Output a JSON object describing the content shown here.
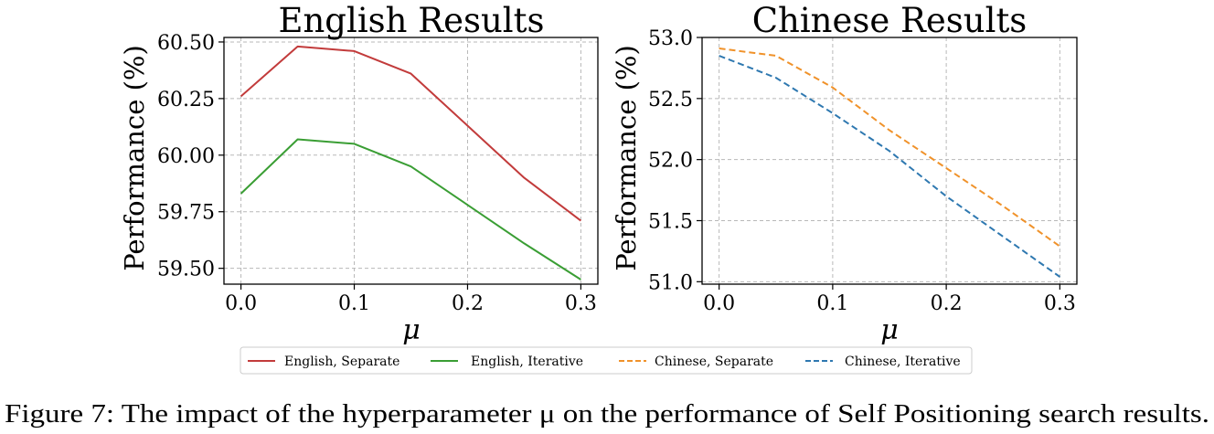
{
  "chart_data": [
    {
      "type": "line",
      "title": "English Results",
      "xlabel": "μ",
      "ylabel": "Performance (%)",
      "xlim": [
        -0.015,
        0.315
      ],
      "ylim": [
        59.43,
        60.52
      ],
      "xticks": [
        "0.0",
        "0.1",
        "0.2",
        "0.3"
      ],
      "xtick_values": [
        0.0,
        0.1,
        0.2,
        0.3
      ],
      "yticks": [
        "59.50",
        "59.75",
        "60.00",
        "60.25",
        "60.50"
      ],
      "ytick_values": [
        59.5,
        59.75,
        60.0,
        60.25,
        60.5
      ],
      "grid": true,
      "x": [
        0.0,
        0.05,
        0.1,
        0.15,
        0.2,
        0.25,
        0.3
      ],
      "series": [
        {
          "name": "English, Separate",
          "color": "#c23b3b",
          "dash": "solid",
          "values": [
            60.26,
            60.48,
            60.46,
            60.36,
            60.13,
            59.9,
            59.71
          ]
        },
        {
          "name": "English, Iterative",
          "color": "#3a9e34",
          "dash": "solid",
          "values": [
            59.83,
            60.07,
            60.05,
            59.95,
            59.78,
            59.61,
            59.45
          ]
        }
      ]
    },
    {
      "type": "line",
      "title": "Chinese Results",
      "xlabel": "μ",
      "ylabel": "Performance (%)",
      "xlim": [
        -0.015,
        0.315
      ],
      "ylim": [
        50.98,
        53.0
      ],
      "xticks": [
        "0.0",
        "0.1",
        "0.2",
        "0.3"
      ],
      "xtick_values": [
        0.0,
        0.1,
        0.2,
        0.3
      ],
      "yticks": [
        "51.0",
        "51.5",
        "52.0",
        "52.5",
        "53.0"
      ],
      "ytick_values": [
        51.0,
        51.5,
        52.0,
        52.5,
        53.0
      ],
      "grid": true,
      "x": [
        0.0,
        0.05,
        0.1,
        0.15,
        0.2,
        0.25,
        0.3
      ],
      "series": [
        {
          "name": "Chinese, Separate",
          "color": "#f0922a",
          "dash": "dashed",
          "values": [
            52.91,
            52.85,
            52.59,
            52.24,
            51.93,
            51.62,
            51.29
          ]
        },
        {
          "name": "Chinese, Iterative",
          "color": "#2e78b0",
          "dash": "dashed",
          "values": [
            52.85,
            52.67,
            52.38,
            52.07,
            51.7,
            51.37,
            51.04
          ]
        }
      ]
    }
  ],
  "legend": {
    "placement": "bottom-center",
    "entries": [
      {
        "label": "English, Separate",
        "color": "#c23b3b",
        "dash": "solid"
      },
      {
        "label": "English, Iterative",
        "color": "#3a9e34",
        "dash": "solid"
      },
      {
        "label": "Chinese, Separate",
        "color": "#f0922a",
        "dash": "dashed"
      },
      {
        "label": "Chinese, Iterative",
        "color": "#2e78b0",
        "dash": "dashed"
      }
    ]
  },
  "caption": "Figure 7: The impact of the hyperparameter μ on the performance of Self Positioning search results."
}
